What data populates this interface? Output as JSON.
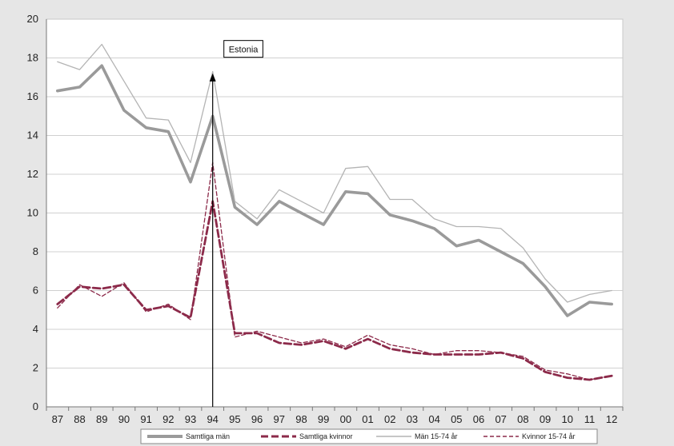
{
  "chart_data": {
    "type": "line",
    "categories": [
      "87",
      "88",
      "89",
      "90",
      "91",
      "92",
      "93",
      "94",
      "95",
      "96",
      "97",
      "98",
      "99",
      "00",
      "01",
      "02",
      "03",
      "04",
      "05",
      "06",
      "07",
      "08",
      "09",
      "10",
      "11",
      "12"
    ],
    "ylim": [
      0,
      20
    ],
    "yticks": [
      0,
      2,
      4,
      6,
      8,
      10,
      12,
      14,
      16,
      18,
      20
    ],
    "grid": true,
    "legend_position": "bottom",
    "series": [
      {
        "name": "Samtliga män",
        "style": "solid-thick",
        "color": "#9a9a9a",
        "values": [
          16.3,
          16.5,
          17.6,
          15.3,
          14.4,
          14.2,
          11.6,
          15.0,
          10.3,
          9.4,
          10.6,
          10.0,
          9.4,
          11.1,
          11.0,
          9.9,
          9.6,
          9.2,
          8.3,
          8.6,
          8.0,
          7.4,
          6.2,
          4.7,
          5.4,
          5.3
        ]
      },
      {
        "name": "Samtliga kvinnor",
        "style": "dashed-thick",
        "color": "#8c2a4a",
        "values": [
          5.3,
          6.2,
          6.1,
          6.3,
          5.0,
          5.2,
          4.6,
          10.6,
          3.8,
          3.8,
          3.3,
          3.2,
          3.4,
          3.0,
          3.5,
          3.0,
          2.8,
          2.7,
          2.7,
          2.7,
          2.8,
          2.5,
          1.8,
          1.5,
          1.4,
          1.6
        ]
      },
      {
        "name": "Män 15-74 år",
        "style": "solid-thin",
        "color": "#b4b4b4",
        "values": [
          17.8,
          17.4,
          18.7,
          16.8,
          14.9,
          14.8,
          12.6,
          17.3,
          10.6,
          9.7,
          11.2,
          10.6,
          10.0,
          12.3,
          12.4,
          10.7,
          10.7,
          9.7,
          9.3,
          9.3,
          9.2,
          8.2,
          6.6,
          5.4,
          5.8,
          6.0
        ]
      },
      {
        "name": "Kvinnor 15-74 år",
        "style": "dashed-thin",
        "color": "#8c2a4a",
        "values": [
          5.1,
          6.3,
          5.7,
          6.4,
          4.9,
          5.3,
          4.5,
          12.6,
          3.6,
          3.9,
          3.6,
          3.3,
          3.5,
          3.1,
          3.7,
          3.2,
          3.0,
          2.7,
          2.9,
          2.9,
          2.8,
          2.6,
          1.9,
          1.7,
          1.4,
          1.6
        ]
      }
    ],
    "annotation": {
      "label": "Estonia",
      "category": "94",
      "value": 17.2
    }
  }
}
